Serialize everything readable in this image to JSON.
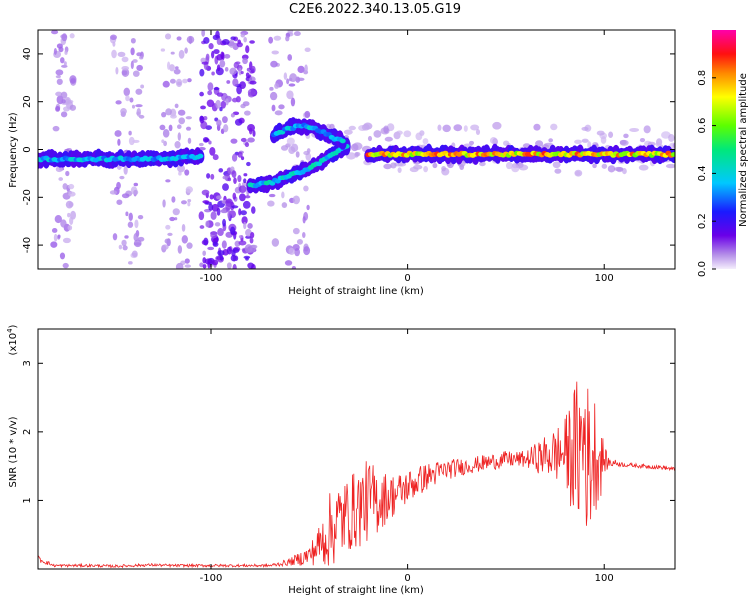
{
  "title": "C2E6.2022.340.13.05.G19",
  "chart_data": [
    {
      "type": "heatmap",
      "xlabel": "Height of straight line (km)",
      "ylabel": "Frequency (Hz)",
      "xlim": [
        -188,
        136
      ],
      "ylim": [
        -50,
        50
      ],
      "xticks": [
        -100,
        0,
        100
      ],
      "yticks": [
        -40,
        -20,
        0,
        20,
        40
      ],
      "grid": false,
      "colorbar": {
        "label": "Normalized spectral amplitude",
        "range": [
          0,
          1
        ],
        "ticks": [
          "0.0",
          "0.2",
          "0.4",
          "0.6",
          "0.8"
        ],
        "colormap": "rainbow (purple-blue-cyan-green-yellow-red-magenta)"
      },
      "traces": [
        {
          "name": "",
          "x": [
            -188,
            -160,
            -130,
            -105
          ],
          "y": [
            -4,
            -4,
            -4,
            -3
          ],
          "amplitude": 0.4
        },
        {
          "name": "",
          "x": [
            -80,
            -70,
            -60,
            -50,
            -40,
            -30
          ],
          "y": [
            -15,
            -14,
            -11,
            -8,
            -3,
            2
          ],
          "amplitude": 0.45
        },
        {
          "name": "",
          "x": [
            -68,
            -60,
            -52,
            -45,
            -38,
            -32
          ],
          "y": [
            6,
            9,
            10,
            8,
            5,
            3
          ],
          "amplitude": 0.4
        },
        {
          "name": "",
          "x": [
            -20,
            0,
            50,
            90,
            100,
            136
          ],
          "y": [
            -2,
            -2,
            -2,
            -2,
            -2,
            -2
          ],
          "amplitude": 0.85
        }
      ]
    },
    {
      "type": "line",
      "xlabel": "Height of straight line (km)",
      "ylabel": "SNR (10 * v/v)",
      "y_multiplier": "(x10",
      "y_multiplier_exp": "4",
      "y_multiplier_close": ")",
      "xlim": [
        -188,
        136
      ],
      "ylim": [
        0,
        3.5
      ],
      "xticks": [
        -100,
        0,
        100
      ],
      "yticks": [
        1,
        2,
        3
      ],
      "grid": false,
      "color": "#ee2222",
      "series": [
        {
          "x": [
            -188,
            -180,
            -170,
            -160,
            -150,
            -140,
            -130,
            -120,
            -110,
            -100,
            -90,
            -80,
            -70,
            -60,
            -50,
            -45,
            -40,
            -35,
            -30,
            -25,
            -20,
            -15,
            -10,
            -5,
            0,
            10,
            20,
            30,
            40,
            50,
            60,
            70,
            80,
            85,
            88,
            90,
            92,
            95,
            98,
            100,
            102,
            105,
            110,
            120,
            130,
            136
          ],
          "y": [
            0.15,
            0.05,
            0.05,
            0.05,
            0.04,
            0.05,
            0.06,
            0.05,
            0.05,
            0.05,
            0.05,
            0.05,
            0.05,
            0.1,
            0.2,
            0.35,
            0.55,
            0.7,
            0.8,
            0.9,
            1.0,
            1.0,
            1.05,
            1.1,
            1.2,
            1.35,
            1.45,
            1.5,
            1.55,
            1.6,
            1.6,
            1.65,
            1.7,
            1.7,
            1.75,
            2.0,
            1.5,
            1.7,
            1.6,
            1.6,
            1.55,
            1.55,
            1.52,
            1.5,
            1.48,
            1.45
          ],
          "noise": [
            0.05,
            0.02,
            0.02,
            0.02,
            0.02,
            0.02,
            0.02,
            0.02,
            0.02,
            0.02,
            0.02,
            0.02,
            0.02,
            0.05,
            0.15,
            0.3,
            0.55,
            0.6,
            0.55,
            0.6,
            0.6,
            0.5,
            0.35,
            0.3,
            0.25,
            0.2,
            0.15,
            0.12,
            0.12,
            0.12,
            0.12,
            0.3,
            0.5,
            1.0,
            1.2,
            1.4,
            1.1,
            0.9,
            0.6,
            0.2,
            0.1,
            0.05,
            0.03,
            0.03,
            0.03,
            0.03
          ]
        }
      ]
    }
  ]
}
